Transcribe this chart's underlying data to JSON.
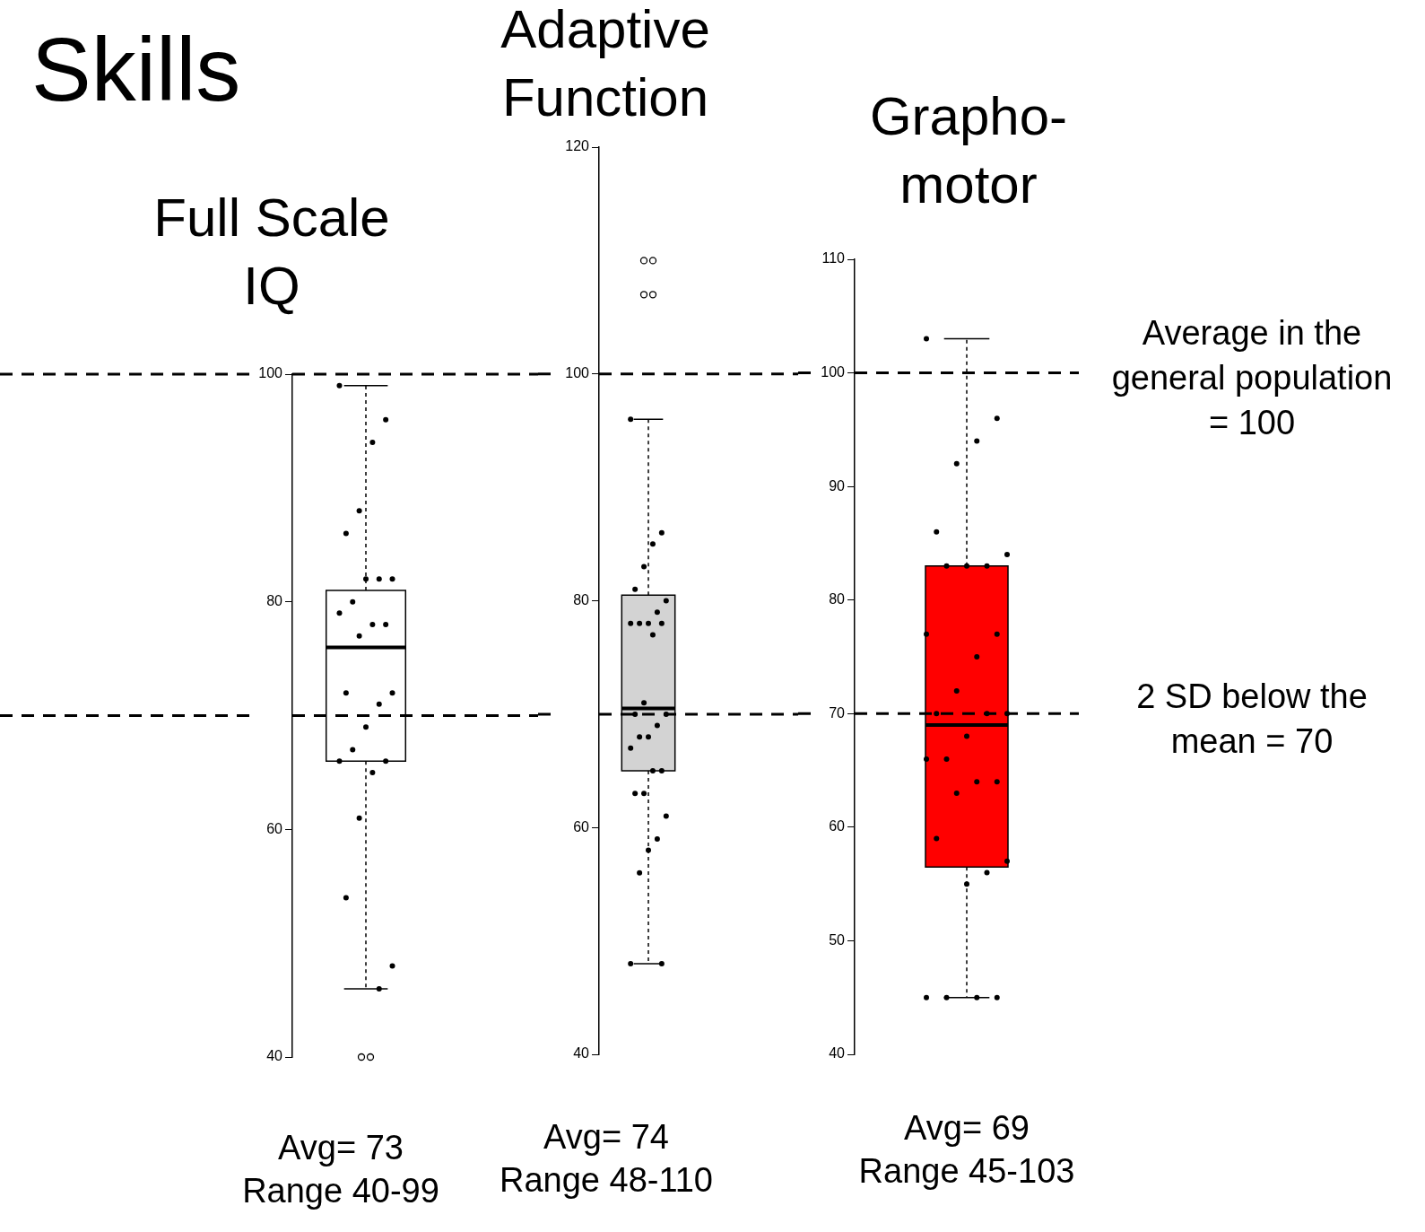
{
  "chart_data": [
    {
      "type": "other",
      "title": "Skills"
    },
    {
      "type": "box",
      "title": "Full Scale IQ",
      "categories": [
        null
      ],
      "color": "#ffffff",
      "boxes": [
        {
          "low": 46,
          "q1": 66,
          "median": 76,
          "q3": 81,
          "high": 99,
          "outliers": [
            40,
            40
          ]
        }
      ],
      "series": [
        {
          "type": "scatter",
          "color": "#000000",
          "x": [
            null,
            null,
            null,
            null,
            null,
            null,
            null,
            null,
            null,
            null,
            null,
            null,
            null,
            null,
            null,
            null,
            null,
            null,
            null,
            null,
            null,
            null,
            null,
            null,
            null
          ],
          "values": [
            99,
            96,
            94,
            88,
            86,
            82,
            82,
            82,
            80,
            79,
            78,
            78,
            77,
            72,
            72,
            71,
            69,
            67,
            66,
            66,
            65,
            61,
            54,
            48,
            46
          ]
        }
      ],
      "ylim": [
        40,
        100
      ],
      "yticks": [
        40,
        60,
        80,
        100
      ],
      "grid": false,
      "legend": false,
      "marker": "circle",
      "ref_lines": [
        {
          "axis": "y",
          "value": 100,
          "color": "#000000",
          "line_style": "dashed"
        },
        {
          "axis": "y",
          "value": 70,
          "color": "#000000",
          "line_style": "dashed"
        }
      ],
      "annotations": [
        "Avg= 73",
        "Range 40-99"
      ]
    },
    {
      "type": "box",
      "title": "Adaptive Function",
      "categories": [
        null
      ],
      "color": "#d3d3d3",
      "boxes": [
        {
          "low": 48,
          "q1": 65,
          "median": 70.5,
          "q3": 80.5,
          "high": 96,
          "outliers": [
            110,
            110,
            107,
            107
          ]
        }
      ],
      "series": [
        {
          "type": "scatter",
          "color": "#000000",
          "x": [
            null,
            null,
            null,
            null,
            null,
            null,
            null,
            null,
            null,
            null,
            null,
            null,
            null,
            null,
            null,
            null,
            null,
            null,
            null,
            null,
            null,
            null,
            null,
            null,
            null,
            null,
            null,
            null,
            null
          ],
          "values": [
            96,
            86,
            85,
            83,
            81,
            80,
            79,
            78,
            78,
            78,
            78,
            77,
            71,
            70,
            70,
            69,
            68,
            68,
            67,
            65,
            65,
            63,
            63,
            61,
            59,
            58,
            56,
            48,
            48
          ]
        }
      ],
      "ylim": [
        40,
        120
      ],
      "yticks": [
        40,
        60,
        80,
        100,
        120
      ],
      "grid": false,
      "legend": false,
      "marker": "circle",
      "ref_lines": [
        {
          "axis": "y",
          "value": 100,
          "color": "#000000",
          "line_style": "dashed"
        },
        {
          "axis": "y",
          "value": 70,
          "color": "#000000",
          "line_style": "dashed"
        }
      ],
      "annotations": [
        "Avg= 74",
        "Range 48-110"
      ]
    },
    {
      "type": "box",
      "title": "Grapho-motor",
      "categories": [
        null
      ],
      "color": "#ff0000",
      "boxes": [
        {
          "low": 45,
          "q1": 56.5,
          "median": 69,
          "q3": 83,
          "high": 103
        }
      ],
      "series": [
        {
          "type": "scatter",
          "color": "#000000",
          "x": [
            null,
            null,
            null,
            null,
            null,
            null,
            null,
            null,
            null,
            null,
            null,
            null,
            null,
            null,
            null,
            null,
            null,
            null,
            null,
            null,
            null,
            null,
            null,
            null,
            null,
            null,
            null,
            null,
            null,
            null
          ],
          "values": [
            103,
            96,
            94,
            92,
            86,
            84,
            83,
            83,
            83,
            77,
            77,
            75,
            72,
            70,
            70,
            70,
            68,
            66,
            66,
            64,
            64,
            63,
            59,
            57,
            56,
            55,
            45,
            45,
            45,
            45
          ]
        }
      ],
      "ylim": [
        40,
        110
      ],
      "yticks": [
        40,
        50,
        60,
        70,
        80,
        90,
        100,
        110
      ],
      "grid": false,
      "legend": false,
      "marker": "circle",
      "ref_lines": [
        {
          "axis": "y",
          "value": 100,
          "color": "#000000",
          "line_style": "dashed",
          "label": "Average in the general population = 100"
        },
        {
          "axis": "y",
          "value": 70,
          "color": "#000000",
          "line_style": "dashed",
          "label": "2 SD below the mean = 70"
        }
      ],
      "annotations": [
        "Avg= 69",
        "Range 45-103"
      ]
    }
  ]
}
